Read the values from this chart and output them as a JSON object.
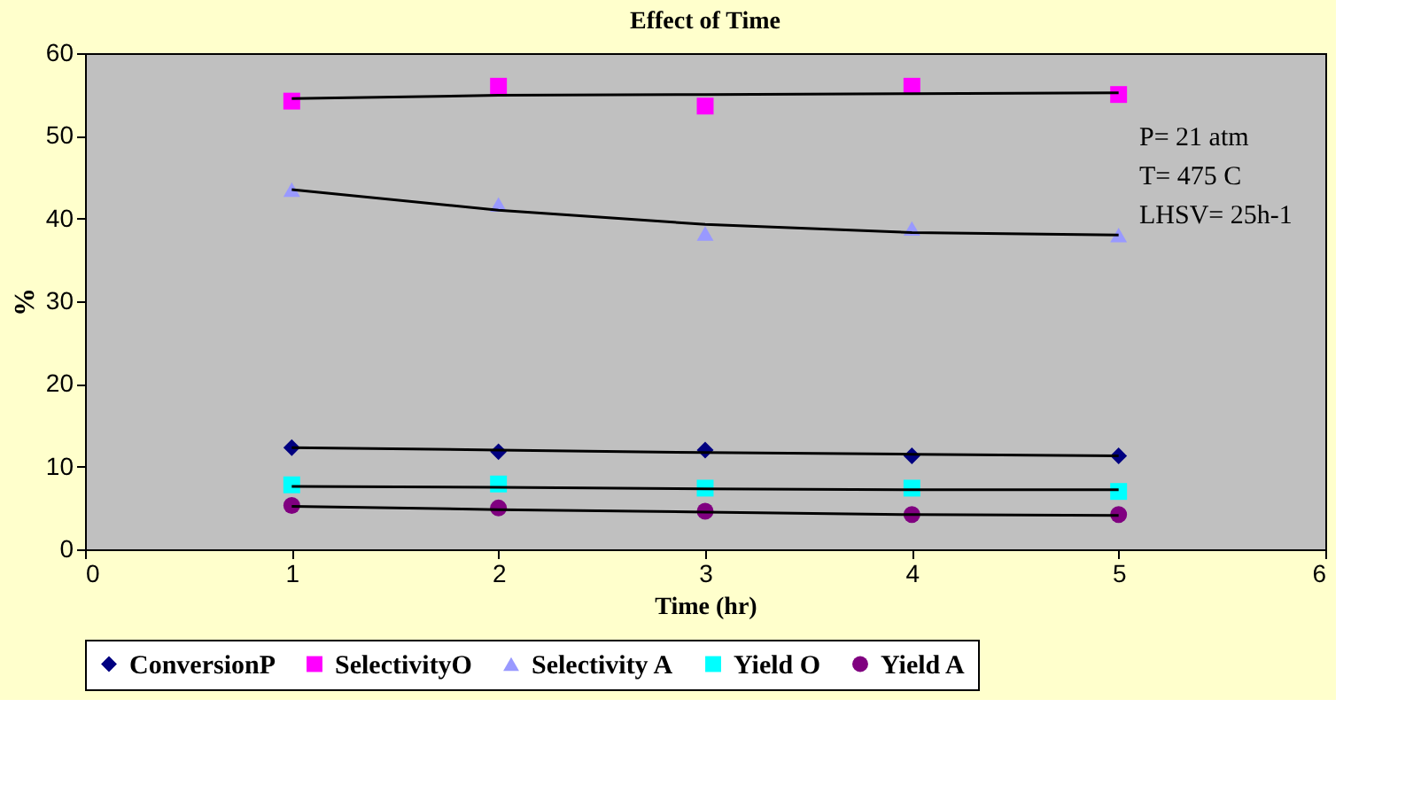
{
  "chart_data": {
    "type": "scatter",
    "title": "Effect of Time",
    "xlabel": "Time (hr)",
    "ylabel": "%",
    "x": [
      1,
      2,
      3,
      4,
      5
    ],
    "series": [
      {
        "name": "ConversionP",
        "color": "#000080",
        "marker": "diamond",
        "values": [
          12.3,
          11.8,
          12.0,
          11.3,
          11.3
        ]
      },
      {
        "name": "SelectivityO",
        "color": "#ff00ff",
        "marker": "square",
        "values": [
          54.2,
          56.0,
          53.6,
          56.0,
          55.0
        ]
      },
      {
        "name": "Selectivity A",
        "color": "#9999ff",
        "marker": "triangle",
        "values": [
          43.5,
          41.7,
          38.2,
          38.8,
          38.0
        ]
      },
      {
        "name": "Yield O",
        "color": "#00ffff",
        "marker": "square",
        "values": [
          7.8,
          7.9,
          7.4,
          7.4,
          7.0
        ]
      },
      {
        "name": "Yield A",
        "color": "#800080",
        "marker": "circle",
        "values": [
          5.3,
          5.0,
          4.6,
          4.2,
          4.2
        ]
      },
      {
        "type": "line",
        "color": "#000000",
        "x": [
          1,
          2,
          3,
          4,
          5
        ],
        "values": [
          12.3,
          12.0,
          11.7,
          11.5,
          11.3
        ]
      },
      {
        "type": "line",
        "color": "#000000",
        "x": [
          1,
          2,
          3,
          4,
          5
        ],
        "values": [
          54.5,
          54.9,
          55.0,
          55.1,
          55.2
        ]
      },
      {
        "type": "line",
        "color": "#000000",
        "x": [
          1,
          2,
          3,
          4,
          5
        ],
        "values": [
          43.5,
          41.0,
          39.3,
          38.3,
          38.0
        ]
      },
      {
        "type": "line",
        "color": "#000000",
        "x": [
          1,
          2,
          3,
          4,
          5
        ],
        "values": [
          7.6,
          7.5,
          7.3,
          7.2,
          7.2
        ]
      },
      {
        "type": "line",
        "color": "#000000",
        "x": [
          1,
          2,
          3,
          4,
          5
        ],
        "values": [
          5.2,
          4.8,
          4.5,
          4.2,
          4.1
        ]
      }
    ],
    "xlim": [
      0,
      6
    ],
    "xticks": [
      0,
      1,
      2,
      3,
      4,
      5,
      6
    ],
    "ylim": [
      0,
      60
    ],
    "yticks": [
      0,
      10,
      20,
      30,
      40,
      50,
      60
    ],
    "grid": false,
    "legend": "bottom",
    "line_style": "solid",
    "annotations": [
      "P= 21 atm",
      "T= 475 C",
      "LHSV= 25h-1"
    ]
  }
}
